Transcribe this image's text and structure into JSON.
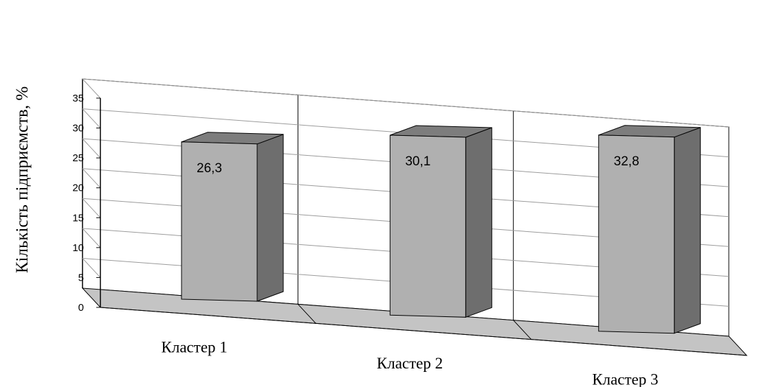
{
  "chart_data": {
    "type": "bar",
    "categories": [
      "Кластер 1",
      "Кластер 2",
      "Кластер 3"
    ],
    "values": [
      26.3,
      30.1,
      32.8
    ],
    "data_labels": [
      "26,3",
      "30,1",
      "32,8"
    ],
    "title": "",
    "xlabel": "",
    "ylabel": "Кількість підприємств, %",
    "ylim": [
      0,
      35
    ],
    "yticks": [
      0,
      5,
      10,
      15,
      20,
      25,
      30,
      35
    ],
    "grid": true,
    "legend": "none",
    "three_d": true,
    "colors": {
      "bar_front": "#b0b0b0",
      "bar_top": "#7d7d7d",
      "bar_side": "#6e6e6e",
      "floor": "#c4c4c4",
      "grid": "#9a9a9a"
    }
  }
}
